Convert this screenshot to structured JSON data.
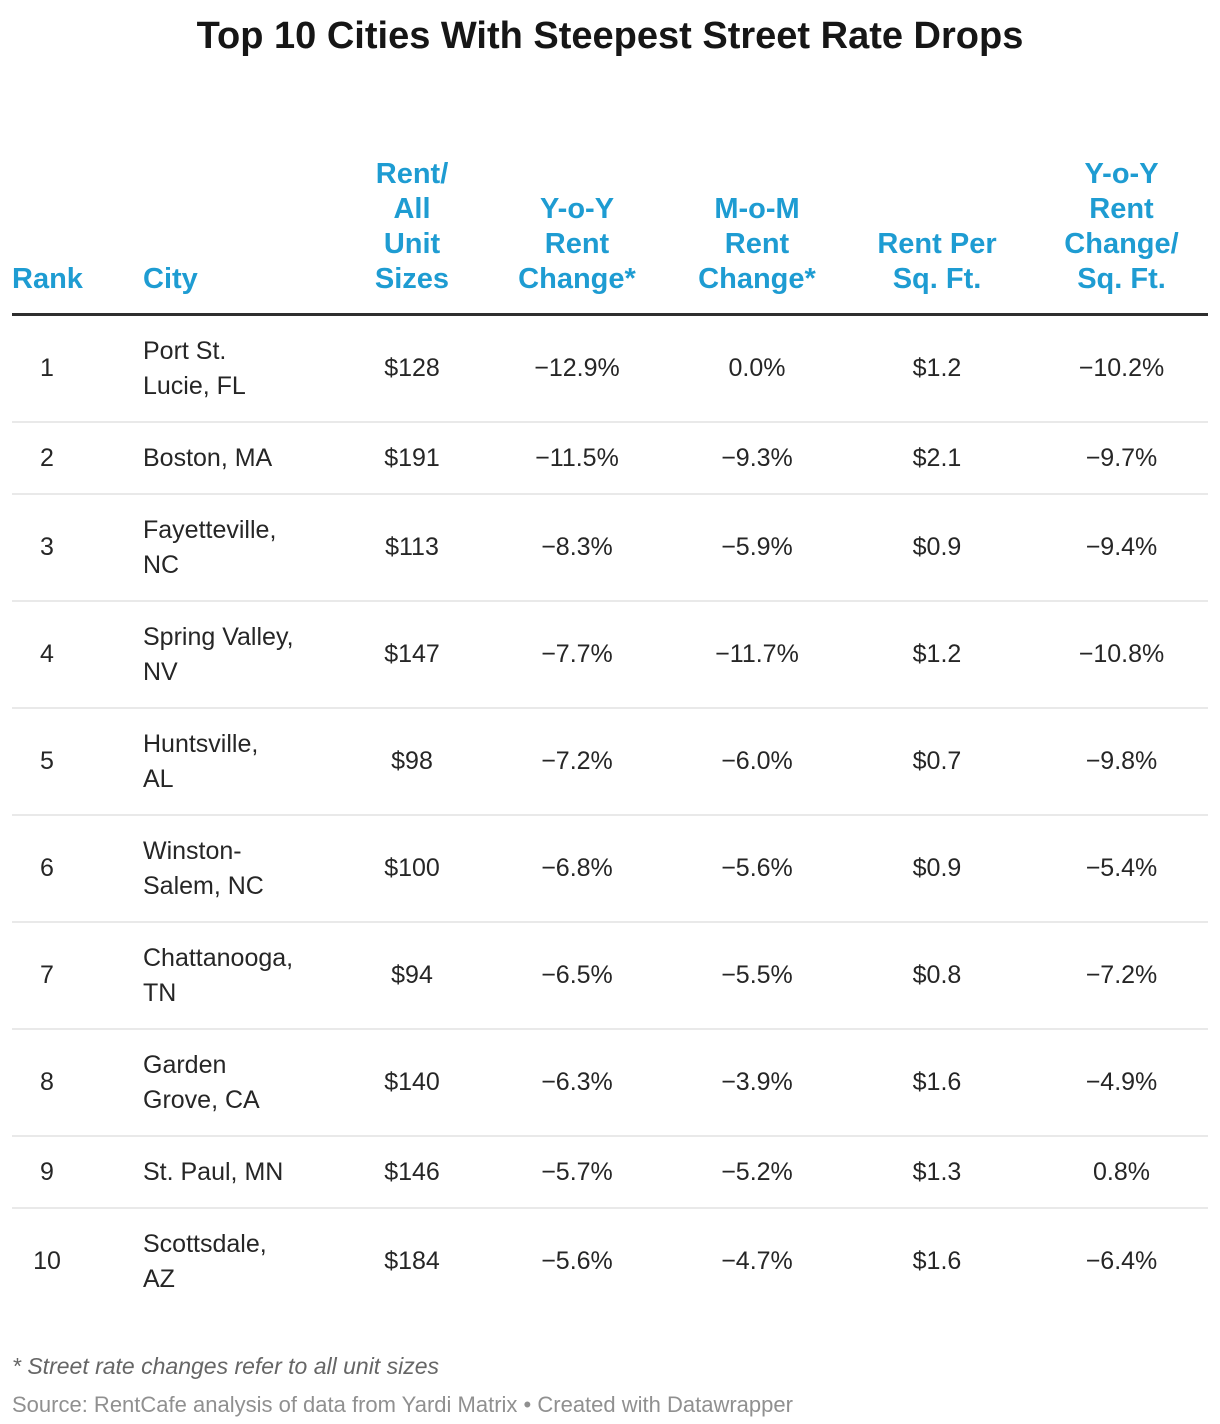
{
  "title": "Top 10 Cities With Steepest Street Rate Drops",
  "footnote": "* Street rate changes refer to all unit sizes",
  "footer": {
    "source_text": "Source: RentCafe analysis of data from Yardi Matrix",
    "separator": "•",
    "attribution": "Created with Datawrapper"
  },
  "colors": {
    "header_text": "#1E9CD2",
    "title_text": "#161616",
    "body_text": "#262626",
    "header_rule": "#2E2E2E",
    "row_divider": "#E9E9E9",
    "footnote_text": "#666666",
    "source_text": "#909090"
  },
  "chart_data": {
    "type": "table",
    "title": "Top 10 Cities With Steepest Street Rate Drops",
    "columns": [
      {
        "key": "rank",
        "label": "Rank"
      },
      {
        "key": "city",
        "label": "City"
      },
      {
        "key": "rent_all_units",
        "label": "Rent/\nAll\nUnit\nSizes"
      },
      {
        "key": "yoy_rent_change",
        "label": "Y-o-Y\nRent\nChange*"
      },
      {
        "key": "mom_rent_change",
        "label": "M-o-M\nRent\nChange*"
      },
      {
        "key": "rent_per_sqft",
        "label": "Rent Per\nSq. Ft."
      },
      {
        "key": "yoy_rent_change_sqft",
        "label": "Y-o-Y\nRent\nChange/\nSq. Ft."
      }
    ],
    "rows": [
      {
        "rank": "1",
        "city": "Port St.\nLucie, FL",
        "rent_all_units": "$128",
        "yoy_rent_change": "−12.9%",
        "mom_rent_change": "0.0%",
        "rent_per_sqft": "$1.2",
        "yoy_rent_change_sqft": "−10.2%"
      },
      {
        "rank": "2",
        "city": "Boston, MA",
        "rent_all_units": "$191",
        "yoy_rent_change": "−11.5%",
        "mom_rent_change": "−9.3%",
        "rent_per_sqft": "$2.1",
        "yoy_rent_change_sqft": "−9.7%"
      },
      {
        "rank": "3",
        "city": "Fayetteville,\nNC",
        "rent_all_units": "$113",
        "yoy_rent_change": "−8.3%",
        "mom_rent_change": "−5.9%",
        "rent_per_sqft": "$0.9",
        "yoy_rent_change_sqft": "−9.4%"
      },
      {
        "rank": "4",
        "city": "Spring Valley,\nNV",
        "rent_all_units": "$147",
        "yoy_rent_change": "−7.7%",
        "mom_rent_change": "−11.7%",
        "rent_per_sqft": "$1.2",
        "yoy_rent_change_sqft": "−10.8%"
      },
      {
        "rank": "5",
        "city": "Huntsville,\nAL",
        "rent_all_units": "$98",
        "yoy_rent_change": "−7.2%",
        "mom_rent_change": "−6.0%",
        "rent_per_sqft": "$0.7",
        "yoy_rent_change_sqft": "−9.8%"
      },
      {
        "rank": "6",
        "city": "Winston-\nSalem, NC",
        "rent_all_units": "$100",
        "yoy_rent_change": "−6.8%",
        "mom_rent_change": "−5.6%",
        "rent_per_sqft": "$0.9",
        "yoy_rent_change_sqft": "−5.4%"
      },
      {
        "rank": "7",
        "city": "Chattanooga,\nTN",
        "rent_all_units": "$94",
        "yoy_rent_change": "−6.5%",
        "mom_rent_change": "−5.5%",
        "rent_per_sqft": "$0.8",
        "yoy_rent_change_sqft": "−7.2%"
      },
      {
        "rank": "8",
        "city": "Garden\nGrove, CA",
        "rent_all_units": "$140",
        "yoy_rent_change": "−6.3%",
        "mom_rent_change": "−3.9%",
        "rent_per_sqft": "$1.6",
        "yoy_rent_change_sqft": "−4.9%"
      },
      {
        "rank": "9",
        "city": "St. Paul, MN",
        "rent_all_units": "$146",
        "yoy_rent_change": "−5.7%",
        "mom_rent_change": "−5.2%",
        "rent_per_sqft": "$1.3",
        "yoy_rent_change_sqft": "0.8%"
      },
      {
        "rank": "10",
        "city": "Scottsdale,\nAZ",
        "rent_all_units": "$184",
        "yoy_rent_change": "−5.6%",
        "mom_rent_change": "−4.7%",
        "rent_per_sqft": "$1.6",
        "yoy_rent_change_sqft": "−6.4%"
      }
    ],
    "footnote": "* Street rate changes refer to all unit sizes",
    "source": "Source: RentCafe analysis of data from Yardi Matrix • Created with Datawrapper"
  }
}
